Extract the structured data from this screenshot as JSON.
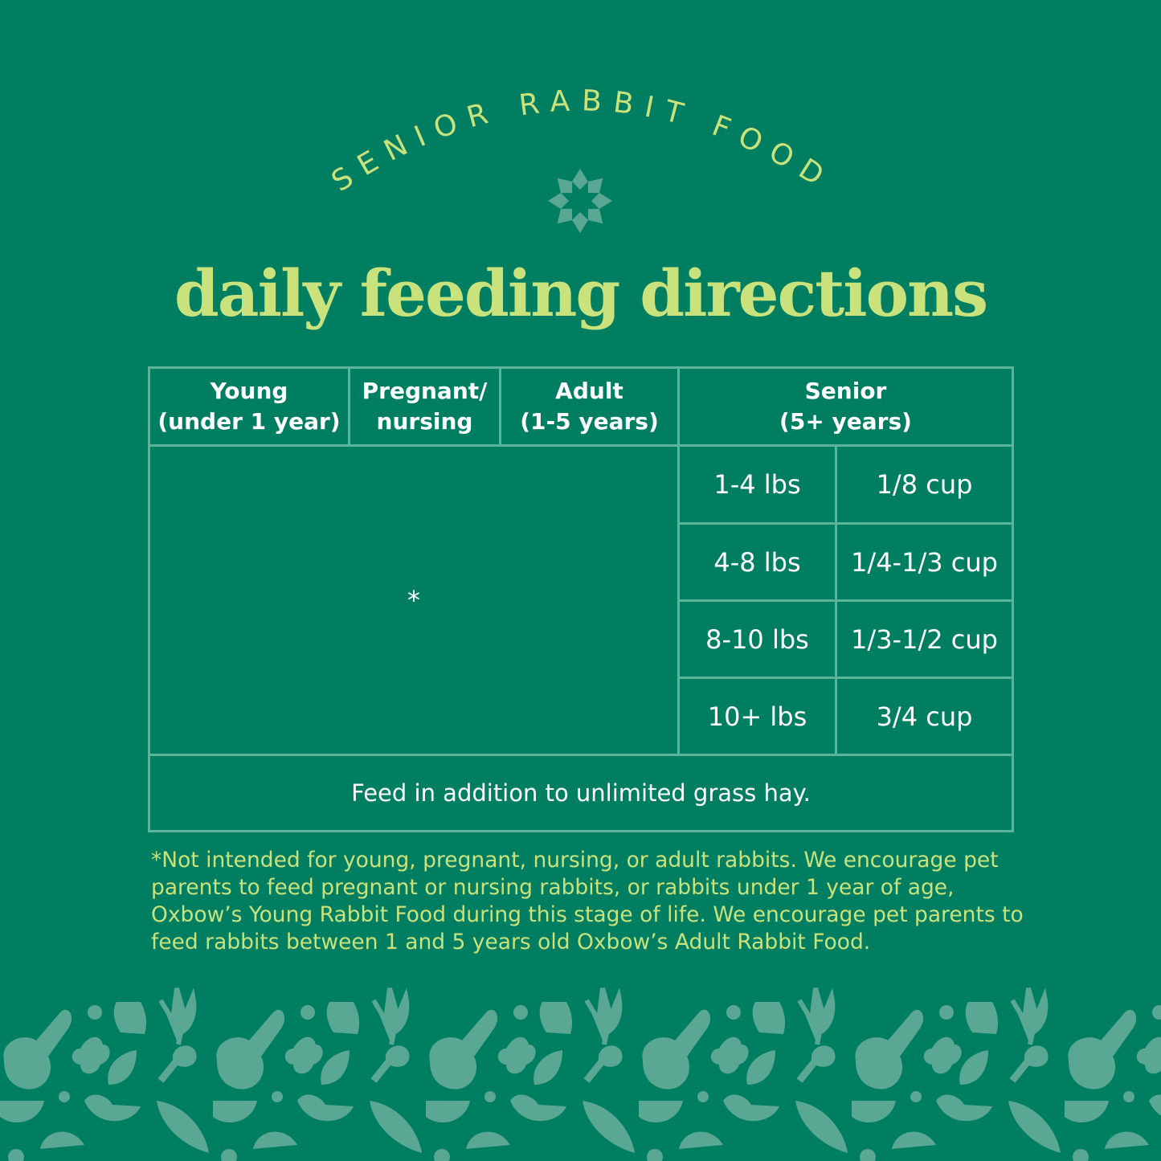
{
  "brand_line": "SENIOR RABBIT FOOD",
  "flower_icon": "flower-icon",
  "title": "daily feeding directions",
  "colors": {
    "background": "#007e62",
    "accent": "#c9e27c",
    "border": "#5ab59b",
    "pattern": "#5aa894"
  },
  "table": {
    "headers": [
      "Young\n(under 1 year)",
      "Pregnant/\nnursing",
      "Adult\n(1-5 years)",
      "Senior\n(5+ years)"
    ],
    "not_applicable_mark": "*",
    "senior_rows": [
      {
        "weight": "1-4 lbs",
        "amount": "1/8 cup"
      },
      {
        "weight": "4-8 lbs",
        "amount": "1/4-1/3 cup"
      },
      {
        "weight": "8-10 lbs",
        "amount": "1/3-1/2 cup"
      },
      {
        "weight": "10+ lbs",
        "amount": "3/4 cup"
      }
    ],
    "footer": "Feed in addition to unlimited grass hay."
  },
  "footnote": "*Not intended for young, pregnant, nursing, or adult rabbits. We encourage pet parents to feed pregnant or nursing rabbits, or rabbits under 1 year of age, Oxbow’s Young Rabbit Food during this stage of life. We encourage pet parents to feed rabbits between 1 and 5 years old Oxbow’s Adult Rabbit Food."
}
